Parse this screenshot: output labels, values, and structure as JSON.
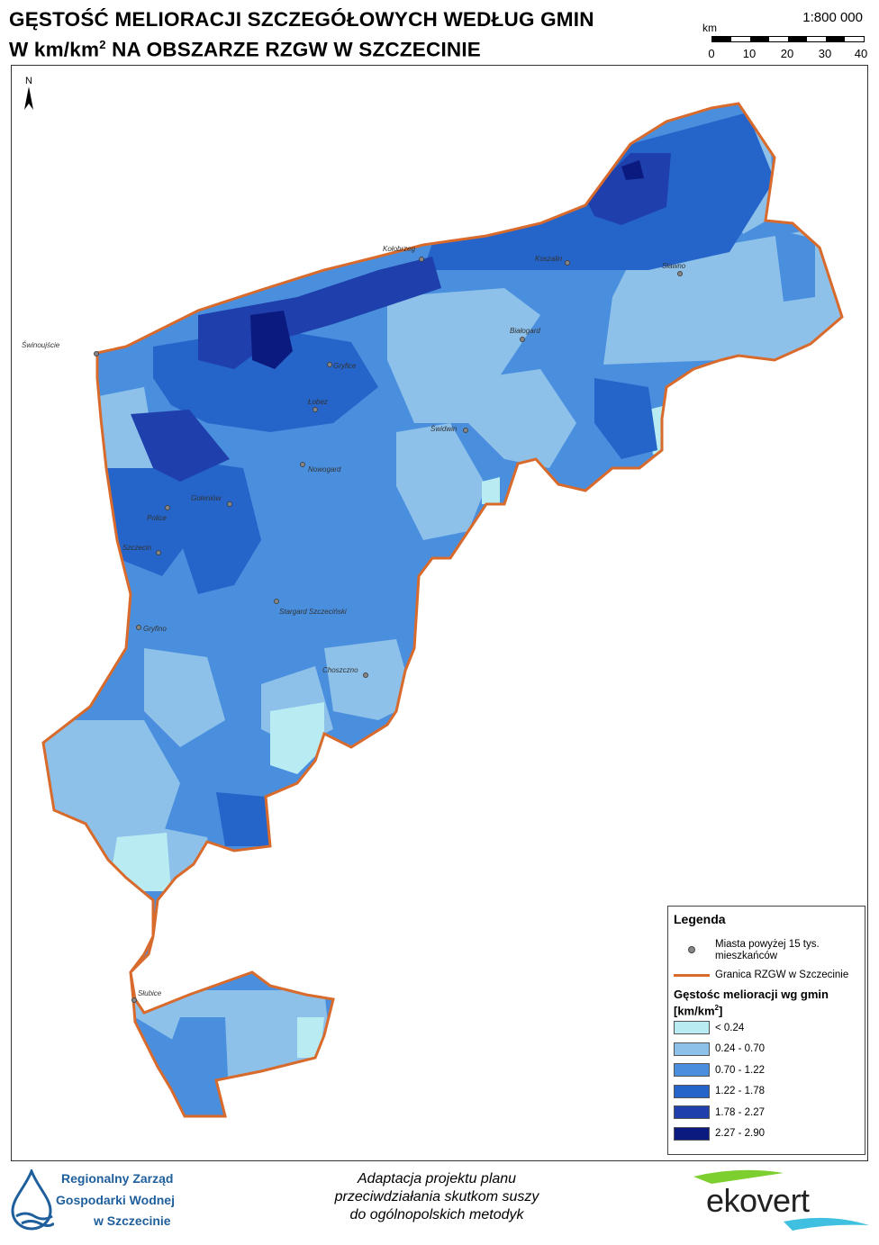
{
  "title": {
    "line1": "GĘSTOŚĆ MELIORACJI SZCZEGÓŁOWYCH WEDŁUG GMIN",
    "line2_a": "W km/km",
    "line2_sup": "2",
    "line2_b": " NA OBSZARZE RZGW W SZCZECINIE"
  },
  "scale": {
    "ratio": "1:800 000",
    "unit": "km",
    "ticks": [
      "0",
      "10",
      "20",
      "30",
      "40"
    ]
  },
  "north_label": "N",
  "towns": [
    {
      "name": "Kołobrzeg"
    },
    {
      "name": "Koszalin"
    },
    {
      "name": "Sławno"
    },
    {
      "name": "Świnoujście"
    },
    {
      "name": "Białogard"
    },
    {
      "name": "Gryfice"
    },
    {
      "name": "Łobez"
    },
    {
      "name": "Świdwin"
    },
    {
      "name": "Nowogard"
    },
    {
      "name": "Goleniów"
    },
    {
      "name": "Police"
    },
    {
      "name": "Szczecin"
    },
    {
      "name": "Stargard Szczeciński"
    },
    {
      "name": "Gryfino"
    },
    {
      "name": "Choszczno"
    },
    {
      "name": "Słubice"
    }
  ],
  "legend": {
    "title": "Legenda",
    "city_label": "Miasta powyżej 15 tys. mieszkańców",
    "boundary_label": "Granica RZGW w Szczecinie",
    "density_title_a": "Gęstośc melioracji wg gmin",
    "density_title_b": "[km/km",
    "density_title_sup": "2",
    "density_title_c": "]",
    "classes": [
      {
        "label": "< 0.24",
        "color": "#b9ecf2"
      },
      {
        "label": "0.24 - 0.70",
        "color": "#8dc1ea"
      },
      {
        "label": "0.70 - 1.22",
        "color": "#4a8fde"
      },
      {
        "label": "1.22 - 1.78",
        "color": "#2564c9"
      },
      {
        "label": "1.78 - 2.27",
        "color": "#1f3fad"
      },
      {
        "label": "2.27 - 2.90",
        "color": "#0b1a7e"
      }
    ],
    "boundary_color": "#d86a2c"
  },
  "footer": {
    "org_line1": "Regionalny Zarząd",
    "org_line2": "Gospodarki Wodnej",
    "org_line3": "w Szczecinie",
    "text_line1": "Adaptacja projektu planu",
    "text_line2": "przeciwdziałania skutkom suszy",
    "text_line3": "do ogólnopolskich metodyk",
    "partner": "ekovert"
  }
}
